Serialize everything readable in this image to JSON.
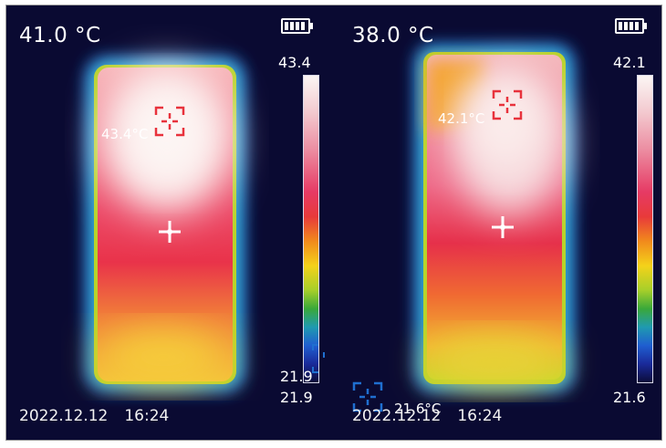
{
  "colors": {
    "background": "#0a0a32",
    "text": "#ffffff",
    "max_marker": "#e8323c",
    "min_marker": "#1f6fd0"
  },
  "left_panel": {
    "center_temp": "41.0 °C",
    "scale_max": "43.4",
    "scale_min": "21.9",
    "scale_min_overlay": "21.9",
    "hotspot_label": "43.4°C",
    "date": "2022.12.12",
    "time": "16:24",
    "icons": [
      "battery-icon",
      "crosshair-icon",
      "hotspot-marker-icon"
    ]
  },
  "right_panel": {
    "center_temp": "38.0 °C",
    "scale_max": "42.1",
    "scale_min": "21.6",
    "hotspot_label": "42.1°C",
    "coldspot_label": "21.6°C",
    "date": "2022.12.12",
    "time": "16:24",
    "icons": [
      "battery-icon",
      "crosshair-icon",
      "hotspot-marker-icon",
      "coldspot-marker-icon"
    ]
  }
}
